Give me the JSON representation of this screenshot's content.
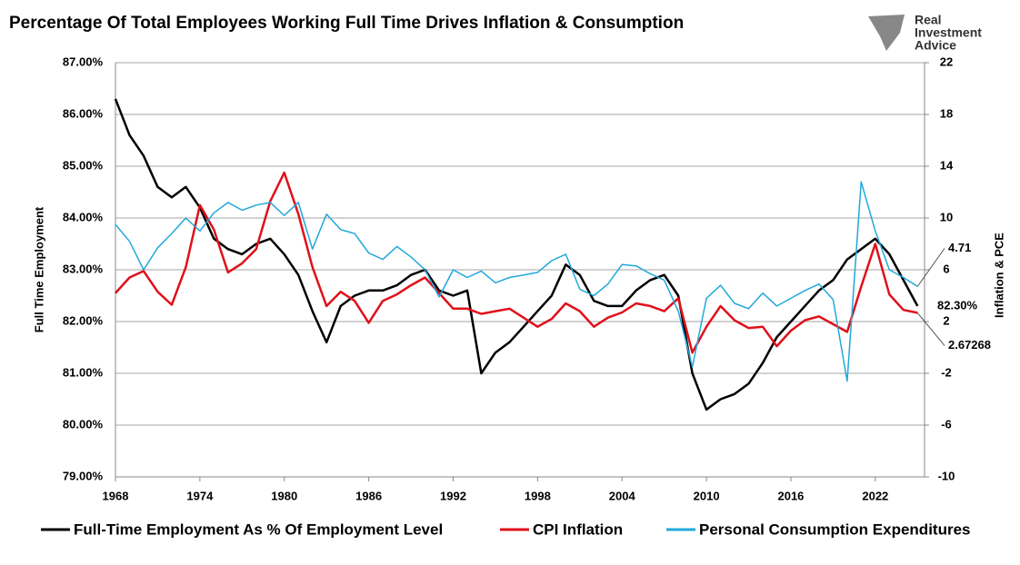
{
  "chart_data": {
    "type": "line",
    "title": "Percentage Of Total Employees Working Full Time Drives Inflation & Consumption",
    "logo": [
      "Real",
      "Investment",
      "Advice"
    ],
    "ylabel": "Full Time Employment",
    "y2label": "Inflation & PCE",
    "x": [
      1968,
      1969,
      1970,
      1971,
      1972,
      1973,
      1974,
      1975,
      1976,
      1977,
      1978,
      1979,
      1980,
      1981,
      1982,
      1983,
      1984,
      1985,
      1986,
      1987,
      1988,
      1989,
      1990,
      1991,
      1992,
      1993,
      1994,
      1995,
      1996,
      1997,
      1998,
      1999,
      2000,
      2001,
      2002,
      2003,
      2004,
      2005,
      2006,
      2007,
      2008,
      2009,
      2010,
      2011,
      2012,
      2013,
      2014,
      2015,
      2016,
      2017,
      2018,
      2019,
      2020,
      2021,
      2022,
      2023,
      2024,
      2025
    ],
    "xlim": [
      1968,
      2025.5
    ],
    "xticks": [
      1968,
      1974,
      1980,
      1986,
      1992,
      1998,
      2004,
      2010,
      2016,
      2022
    ],
    "ylim": [
      79,
      87
    ],
    "yticks": [
      {
        "value": 79,
        "label": "79.00%"
      },
      {
        "value": 80,
        "label": "80.00%"
      },
      {
        "value": 81,
        "label": "81.00%"
      },
      {
        "value": 82,
        "label": "82.00%"
      },
      {
        "value": 83,
        "label": "83.00%"
      },
      {
        "value": 84,
        "label": "84.00%"
      },
      {
        "value": 85,
        "label": "85.00%"
      },
      {
        "value": 86,
        "label": "86.00%"
      },
      {
        "value": 87,
        "label": "87.00%"
      }
    ],
    "y2lim": [
      -10,
      22
    ],
    "y2ticks": [
      -10,
      -6,
      -2,
      2,
      6,
      10,
      14,
      18,
      22
    ],
    "grid": true,
    "series": [
      {
        "name": "Full-Time Employment As % Of Employment Level",
        "color": "#000000",
        "label_last": true,
        "values": [
          86.3,
          85.6,
          85.2,
          84.6,
          84.4,
          84.6,
          84.2,
          83.6,
          83.4,
          83.3,
          83.5,
          83.6,
          83.3,
          82.9,
          82.2,
          81.6,
          82.3,
          82.5,
          82.6,
          82.6,
          82.7,
          82.9,
          83.0,
          82.6,
          82.5,
          82.6,
          81.0,
          81.4,
          81.6,
          81.9,
          82.2,
          82.5,
          83.1,
          82.9,
          82.4,
          82.3,
          82.3,
          82.6,
          82.8,
          82.9,
          82.5,
          81.0,
          80.3,
          80.5,
          80.6,
          80.8,
          81.2,
          81.7,
          82.0,
          82.3,
          82.6,
          82.8,
          83.2,
          83.4,
          83.6,
          83.3,
          82.8,
          82.3
        ],
        "value_labels": [
          null,
          null,
          null,
          null,
          null,
          null,
          null,
          null,
          null,
          null,
          null,
          null,
          null,
          null,
          null,
          null,
          null,
          null,
          null,
          null,
          null,
          null,
          null,
          null,
          null,
          null,
          null,
          null,
          null,
          null,
          null,
          null,
          null,
          null,
          null,
          null,
          null,
          null,
          null,
          null,
          null,
          null,
          null,
          null,
          null,
          null,
          null,
          null,
          null,
          null,
          null,
          null,
          null,
          null,
          null,
          null,
          null,
          "82.30%"
        ]
      },
      {
        "name": "CPI Inflation",
        "color": "#e0101a",
        "axis": "y2",
        "label_last": true,
        "values": [
          4.2,
          5.4,
          5.9,
          4.3,
          3.3,
          6.2,
          11.0,
          9.1,
          5.8,
          6.5,
          7.6,
          11.3,
          13.5,
          10.3,
          6.2,
          3.2,
          4.3,
          3.6,
          1.9,
          3.6,
          4.1,
          4.8,
          5.4,
          4.2,
          3.0,
          3.0,
          2.6,
          2.8,
          3.0,
          2.3,
          1.6,
          2.2,
          3.4,
          2.8,
          1.6,
          2.3,
          2.7,
          3.4,
          3.2,
          2.8,
          3.8,
          -0.4,
          1.6,
          3.2,
          2.1,
          1.5,
          1.6,
          0.1,
          1.3,
          2.1,
          2.4,
          1.8,
          1.2,
          4.7,
          8.0,
          4.1,
          2.9,
          2.67268
        ]
      },
      {
        "name": "Personal Consumption Expenditures",
        "color": "#21a8dc",
        "axis": "y2",
        "label_last": true,
        "values": [
          9.5,
          8.2,
          6.0,
          7.7,
          8.8,
          10.0,
          9.0,
          10.4,
          11.2,
          10.6,
          11.0,
          11.2,
          10.2,
          11.2,
          7.6,
          10.3,
          9.1,
          8.8,
          7.3,
          6.8,
          7.8,
          7.0,
          6.0,
          3.9,
          6.0,
          5.4,
          5.9,
          5.0,
          5.4,
          5.6,
          5.8,
          6.7,
          7.2,
          4.5,
          4.0,
          4.9,
          6.4,
          6.3,
          5.7,
          5.2,
          2.8,
          -1.5,
          3.8,
          4.8,
          3.4,
          3.0,
          4.2,
          3.2,
          3.8,
          4.4,
          4.9,
          3.7,
          -2.6,
          12.8,
          9.0,
          6.0,
          5.4,
          4.71
        ]
      }
    ]
  }
}
